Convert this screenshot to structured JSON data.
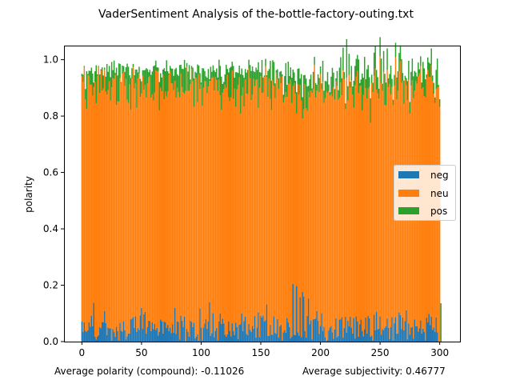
{
  "chart_data": {
    "type": "bar",
    "stacked": true,
    "title": "VaderSentiment Analysis of the-bottle-factory-outing.txt",
    "ylabel": "polarity",
    "xlabel": "Average polarity (compound): -0.11026",
    "xlabel_right": "Average subjectivity: 0.46777",
    "xlim": [
      -15,
      317
    ],
    "ylim": [
      0,
      1.05
    ],
    "xticks": [
      0,
      50,
      100,
      150,
      200,
      250,
      300
    ],
    "xtick_labels": [
      "0",
      "50",
      "100",
      "150",
      "200",
      "250",
      "300"
    ],
    "yticks": [
      0.0,
      0.2,
      0.4,
      0.6,
      0.8,
      1.0
    ],
    "ytick_labels": [
      "0.0",
      "0.2",
      "0.4",
      "0.6",
      "0.8",
      "1.0"
    ],
    "x": {
      "start": 0,
      "count": 303,
      "step": 1
    },
    "legend": {
      "position": "center-right",
      "entries": [
        "neg",
        "neu",
        "pos"
      ]
    },
    "grid": false,
    "series": [
      {
        "name": "neg",
        "color": "#1f77b4",
        "values": [
          0.072,
          0.034,
          0.068,
          0.039,
          0.035,
          0.04,
          0.068,
          0.053,
          0.092,
          0.055,
          0.138,
          0.018,
          0.008,
          0.017,
          0.023,
          0.052,
          0.047,
          0.07,
          0.069,
          0.108,
          0.066,
          0.023,
          0.05,
          0.047,
          0.047,
          0.004,
          0.044,
          0.034,
          0.017,
          0.053,
          0.037,
          0.005,
          0.067,
          0.039,
          0.035,
          0.073,
          0.04,
          0.007,
          0.019,
          0.029,
          0.029,
          0.079,
          0.081,
          0.087,
          0.049,
          0.09,
          0.035,
          0.048,
          0.041,
          0.093,
          0.12,
          0.046,
          0.097,
          0.105,
          0.028,
          0.052,
          0.074,
          0.073,
          0.037,
          0.068,
          0.044,
          0.063,
          0.041,
          0.049,
          0.022,
          0.034,
          0.078,
          0.073,
          0.029,
          0.071,
          0.068,
          0.049,
          0.06,
          0.037,
          0.05,
          0.03,
          0.062,
          0.032,
          0.12,
          0.027,
          0.072,
          0.07,
          0.007,
          0.092,
          0.074,
          0.052,
          0.089,
          0.002,
          0.045,
          0.034,
          0.018,
          0.074,
          0.07,
          0.052,
          0.067,
          0.012,
          0.018,
          0.026,
          0.003,
          0.118,
          0.05,
          0.005,
          0.05,
          0.064,
          0.08,
          0.046,
          0.071,
          0.14,
          0.02,
          0.03,
          0.101,
          0.016,
          0.039,
          0.049,
          0.005,
          0.072,
          0.1,
          0.063,
          0.081,
          0.064,
          0.025,
          0.017,
          0.026,
          0.071,
          0.038,
          0.019,
          0.065,
          0.038,
          0.023,
          0.067,
          0.052,
          0.009,
          0.06,
          0.061,
          0.1,
          0.037,
          0.073,
          0.088,
          0.027,
          0.023,
          0.063,
          0.042,
          0.035,
          0.056,
          0.046,
          0.091,
          0.015,
          0.05,
          0.104,
          0.016,
          0.092,
          0.085,
          0.093,
          0.072,
          0.076,
          0.132,
          0.02,
          0.021,
          0.06,
          0.024,
          0.025,
          0.09,
          0.031,
          0.028,
          0.08,
          0.014,
          0.054,
          0.06,
          0.004,
          0.033,
          0.041,
          0.032,
          0.084,
          0.068,
          0.052,
          0.012,
          0.018,
          0.205,
          0.024,
          0.023,
          0.198,
          0.033,
          0.022,
          0.158,
          0.016,
          0.177,
          0.16,
          0.038,
          0.014,
          0.091,
          0.153,
          0.061,
          0.076,
          0.008,
          0.079,
          0.08,
          0.082,
          0.109,
          0.074,
          0.027,
          0.056,
          0.101,
          0.038,
          0.053,
          0.016,
          0.001,
          0.006,
          0.04,
          0.05,
          0.056,
          0.033,
          0.01,
          0.043,
          0.083,
          0.015,
          0.02,
          0.078,
          0.079,
          0.087,
          0.014,
          0.049,
          0.088,
          0.032,
          0.074,
          0.055,
          0.088,
          0.05,
          0.029,
          0.084,
          0.011,
          0.09,
          0.072,
          0.017,
          0.062,
          0.078,
          0.038,
          0.019,
          0.044,
          0.086,
          0.029,
          0.091,
          0.083,
          0.017,
          0.022,
          0.005,
          0.095,
          0.04,
          0.107,
          0.043,
          0.046,
          0.09,
          0.024,
          0.044,
          0.04,
          0.049,
          0.054,
          0.082,
          0.049,
          0.009,
          0.051,
          0.087,
          0.005,
          0.065,
          0.087,
          0.029,
          0.028,
          0.104,
          0.094,
          0.044,
          0.086,
          0.04,
          0.073,
          0.111,
          0.008,
          0.064,
          0.025,
          0.05,
          0.053,
          0.01,
          0.079,
          0.054,
          0.055,
          0.035,
          0.047,
          0.075,
          0.029,
          0.046,
          0.034,
          0.004,
          0.085,
          0.068,
          0.098,
          0.059,
          0.089,
          0.042,
          0.05,
          0.035,
          0.086,
          0.033
        ]
      },
      {
        "name": "neu",
        "color": "#ff7f0e",
        "values": [
          0.869,
          0.887,
          0.907,
          0.819,
          0.79,
          0.905,
          0.875,
          0.858,
          0.82,
          0.817,
          0.765,
          0.903,
          0.837,
          0.926,
          0.953,
          0.83,
          0.915,
          0.821,
          0.829,
          0.857,
          0.821,
          0.853,
          0.842,
          0.876,
          0.808,
          0.898,
          0.891,
          0.898,
          0.929,
          0.787,
          0.816,
          0.846,
          0.868,
          0.878,
          0.915,
          0.885,
          0.867,
          0.925,
          0.839,
          0.818,
          0.884,
          0.744,
          0.852,
          0.886,
          0.849,
          0.827,
          0.794,
          0.886,
          0.91,
          0.775,
          0.76,
          0.897,
          0.796,
          0.806,
          0.837,
          0.864,
          0.864,
          0.868,
          0.828,
          0.809,
          0.811,
          0.82,
          0.921,
          0.91,
          0.938,
          0.786,
          0.823,
          0.815,
          0.919,
          0.788,
          0.819,
          0.82,
          0.828,
          0.909,
          0.91,
          0.886,
          0.854,
          0.86,
          0.805,
          0.838,
          0.828,
          0.815,
          0.859,
          0.859,
          0.829,
          0.832,
          0.791,
          0.887,
          0.93,
          0.855,
          0.872,
          0.84,
          0.897,
          0.872,
          0.766,
          0.925,
          0.917,
          0.824,
          0.945,
          0.778,
          0.863,
          0.831,
          0.85,
          0.86,
          0.843,
          0.835,
          0.834,
          0.785,
          0.905,
          0.906,
          0.837,
          0.875,
          0.899,
          0.879,
          0.884,
          0.857,
          0.774,
          0.759,
          0.802,
          0.832,
          0.887,
          0.883,
          0.92,
          0.796,
          0.815,
          0.848,
          0.897,
          0.823,
          0.875,
          0.766,
          0.843,
          0.902,
          0.878,
          0.747,
          0.772,
          0.865,
          0.761,
          0.842,
          0.853,
          0.855,
          0.906,
          0.893,
          0.822,
          0.819,
          0.886,
          0.816,
          0.913,
          0.881,
          0.725,
          0.884,
          0.85,
          0.797,
          0.79,
          0.867,
          0.901,
          0.807,
          0.848,
          0.912,
          0.801,
          0.797,
          0.902,
          0.818,
          0.832,
          0.926,
          0.852,
          0.882,
          0.886,
          0.856,
          0.937,
          0.815,
          0.825,
          0.853,
          0.784,
          0.847,
          0.862,
          0.917,
          0.828,
          0.701,
          0.893,
          0.857,
          0.611,
          0.88,
          0.854,
          0.753,
          0.839,
          0.614,
          0.664,
          0.876,
          0.814,
          0.727,
          0.734,
          0.805,
          0.815,
          0.874,
          0.817,
          0.902,
          0.783,
          0.782,
          0.837,
          0.858,
          0.893,
          0.794,
          0.884,
          0.794,
          0.848,
          0.886,
          0.876,
          0.849,
          0.823,
          0.822,
          0.836,
          0.893,
          0.815,
          0.841,
          0.893,
          0.838,
          0.787,
          0.84,
          0.787,
          0.948,
          0.882,
          0.736,
          0.904,
          0.781,
          0.89,
          0.812,
          0.876,
          0.847,
          0.746,
          0.898,
          0.85,
          0.888,
          0.864,
          0.844,
          0.831,
          0.782,
          0.856,
          0.887,
          0.813,
          0.833,
          0.807,
          0.821,
          0.759,
          0.895,
          0.88,
          0.848,
          0.929,
          0.787,
          0.838,
          0.816,
          0.922,
          0.892,
          0.845,
          0.917,
          0.79,
          0.784,
          0.882,
          0.853,
          0.905,
          0.826,
          0.816,
          0.834,
          0.843,
          0.922,
          0.83,
          0.862,
          0.855,
          0.901,
          0.874,
          0.839,
          0.803,
          0.857,
          0.798,
          0.849,
          0.865,
          0.784,
          0.858,
          0.874,
          0.854,
          0.812,
          0.87,
          0.86,
          0.906,
          0.904,
          0.903,
          0.867,
          0.856,
          0.837,
          0.862,
          0.851,
          0.895,
          0.841,
          0.879,
          0.893,
          0.881,
          0.829,
          0.812,
          0.809,
          0.867,
          0.904,
          0.832
        ]
      },
      {
        "name": "pos",
        "color": "#2ca02c",
        "values": [
          0.009,
          0.026,
          0.003,
          0.038,
          0.134,
          0.004,
          0.018,
          0.049,
          0.06,
          0.079,
          0.016,
          0.038,
          0.135,
          0.005,
          0.002,
          0.066,
          0.004,
          0.082,
          0.046,
          0.007,
          0.053,
          0.109,
          0.065,
          0.055,
          0.083,
          0.09,
          0.028,
          0.065,
          0.007,
          0.132,
          0.091,
          0.136,
          0.05,
          0.003,
          0.029,
          0.019,
          0.05,
          0.041,
          0.128,
          0.128,
          0.032,
          0.112,
          0.037,
          0.012,
          0.047,
          0.048,
          0.136,
          0.021,
          0.024,
          0.064,
          0.043,
          0.02,
          0.069,
          0.053,
          0.105,
          0.05,
          0.018,
          0.023,
          0.081,
          0.081,
          0.122,
          0.097,
          0.035,
          0.014,
          0.012,
          0.101,
          0.051,
          0.049,
          0.017,
          0.111,
          0.072,
          0.129,
          0.071,
          0.005,
          0.018,
          0.053,
          0.052,
          0.051,
          0.041,
          0.106,
          0.048,
          0.058,
          0.115,
          0.031,
          0.065,
          0.083,
          0.119,
          0.083,
          0.013,
          0.069,
          0.091,
          0.016,
          0.011,
          0.048,
          0.101,
          0.02,
          0.018,
          0.133,
          0.031,
          0.056,
          0.006,
          0.134,
          0.069,
          0.036,
          0.018,
          0.055,
          0.062,
          0.006,
          0.05,
          0.021,
          0.042,
          0.071,
          0.018,
          0.041,
          0.048,
          0.071,
          0.104,
          0.118,
          0.031,
          0.025,
          0.036,
          0.082,
          0.021,
          0.088,
          0.118,
          0.108,
          0.031,
          0.117,
          0.038,
          0.123,
          0.06,
          0.042,
          0.041,
          0.14,
          0.097,
          0.044,
          0.102,
          0.037,
          0.074,
          0.086,
          0.031,
          0.046,
          0.103,
          0.101,
          0.027,
          0.049,
          0.044,
          0.033,
          0.162,
          0.056,
          0.012,
          0.117,
          0.054,
          0.005,
          0.026,
          0.006,
          0.092,
          0.034,
          0.135,
          0.105,
          0.071,
          0.084,
          0.053,
          0.009,
          0.034,
          0.038,
          0.017,
          0.044,
          0.007,
          0.028,
          0.076,
          0.103,
          0.043,
          0.078,
          0.028,
          0.044,
          0.09,
          0.059,
          0.038,
          0.045,
          0.076,
          0.055,
          0.093,
          0.022,
          0.094,
          0.076,
          0.121,
          0.032,
          0.105,
          0.087,
          0.02,
          0.065,
          0.056,
          0.016,
          0.061,
          0.028,
          0.052,
          0.02,
          0.037,
          0.05,
          0.027,
          0.021,
          0.074,
          0.043,
          0.061,
          0.036,
          0.074,
          0.023,
          0.012,
          0.062,
          0.102,
          0.051,
          0.038,
          0.01,
          0.052,
          0.034,
          0.107,
          0.09,
          0.06,
          0.081,
          0.025,
          0.021,
          0.137,
          0.051,
          0.076,
          0.022,
          0.052,
          0.029,
          0.095,
          0.069,
          0.063,
          0.057,
          0.12,
          0.011,
          0.021,
          0.131,
          0.061,
          0.079,
          0.032,
          0.104,
          0.083,
          0.034,
          0.087,
          0.03,
          0.033,
          0.082,
          0.081,
          0.07,
          0.057,
          0.035,
          0.068,
          0.088,
          0.026,
          0.074,
          0.111,
          0.081,
          0.076,
          0.032,
          0.035,
          0.102,
          0.029,
          0.019,
          0.038,
          0.051,
          0.078,
          0.069,
          0.065,
          0.056,
          0.084,
          0.028,
          0.083,
          0.013,
          0.026,
          0.067,
          0.067,
          0.041,
          0.049,
          0.077,
          0.077,
          0.069,
          0.031,
          0.026,
          0.049,
          0.015,
          0.034,
          0.023,
          0.09,
          0.098,
          0.065,
          0.012,
          0.045,
          0.051,
          0.048,
          0.058,
          0.021,
          0.039,
          0.019,
          0.069,
          0.104,
          0.006,
          0.028,
          0.136
        ]
      }
    ]
  }
}
